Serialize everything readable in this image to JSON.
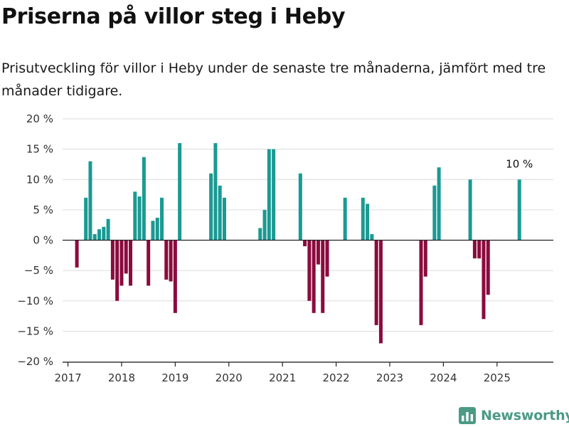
{
  "title": "Priserna på villor steg i Heby",
  "subtitle": "Prisutveckling för villor i Heby under de senaste tre månaderna, jämfört med tre månader tidigare.",
  "brand": "Newsworthy",
  "colors": {
    "positive": "#1a9a93",
    "negative": "#8b0b3e",
    "grid": "#dcdcdc",
    "axis": "#222222"
  },
  "chart_data": {
    "type": "bar",
    "title": "Priserna på villor steg i Heby",
    "subtitle": "Prisutveckling för villor i Heby under de senaste tre månaderna, jämfört med tre månader tidigare.",
    "unit": "%",
    "ylim": [
      -20,
      20
    ],
    "yticks": [
      20,
      15,
      10,
      5,
      0,
      -5,
      -10,
      -15,
      -20
    ],
    "ytick_labels": [
      "20 %",
      "15 %",
      "10 %",
      "5 %",
      "0 %",
      "−5 %",
      "−10 %",
      "−15 %",
      "−20 %"
    ],
    "xticks": [
      "2017",
      "2018",
      "2019",
      "2020",
      "2021",
      "2022",
      "2023",
      "2024",
      "2025"
    ],
    "grid": true,
    "annotation": {
      "label": "10 %",
      "x": "2025-06"
    },
    "x": [
      "2017-03",
      "2017-05",
      "2017-06",
      "2017-07",
      "2017-08",
      "2017-09",
      "2017-10",
      "2017-11",
      "2017-12",
      "2018-01",
      "2018-02",
      "2018-03",
      "2018-04",
      "2018-05",
      "2018-06",
      "2018-07",
      "2018-08",
      "2018-09",
      "2018-10",
      "2018-11",
      "2018-12",
      "2019-01",
      "2019-02",
      "2019-09",
      "2019-10",
      "2019-11",
      "2019-12",
      "2020-08",
      "2020-09",
      "2020-10",
      "2020-11",
      "2021-05",
      "2021-06",
      "2021-07",
      "2021-08",
      "2021-09",
      "2021-10",
      "2021-11",
      "2022-03",
      "2022-07",
      "2022-08",
      "2022-09",
      "2022-10",
      "2022-11",
      "2023-08",
      "2023-09",
      "2023-11",
      "2023-12",
      "2024-07",
      "2024-08",
      "2024-09",
      "2024-10",
      "2024-11",
      "2025-06"
    ],
    "values": [
      -4.5,
      7,
      13,
      1,
      1.8,
      2.2,
      3.5,
      -6.5,
      -10,
      -7.5,
      -5.5,
      -7.5,
      8,
      7.2,
      13.7,
      -7.5,
      3.2,
      3.7,
      7,
      -6.5,
      -6.8,
      -12,
      16,
      11,
      16,
      9,
      7,
      2,
      5,
      15,
      15,
      11,
      -1,
      -10,
      -12,
      -4,
      -12,
      -6,
      7,
      7,
      6,
      1,
      -14,
      -17,
      -14,
      -6,
      9,
      12,
      10,
      -3,
      -3,
      -13,
      -9,
      10
    ]
  }
}
